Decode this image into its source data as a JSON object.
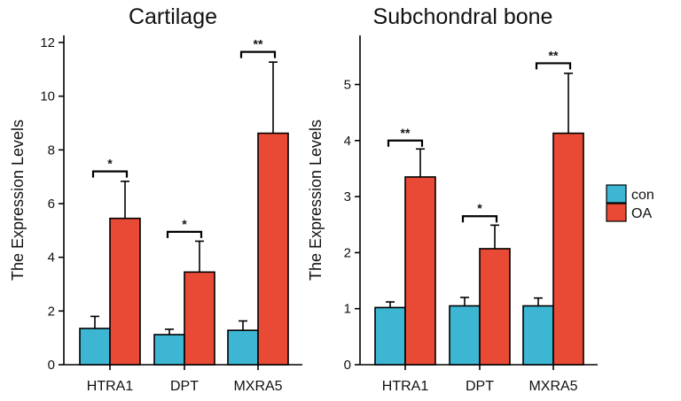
{
  "chart_data": [
    {
      "type": "bar",
      "title": "Cartilage",
      "xlabel": "",
      "ylabel": "The Expression Levels",
      "categories": [
        "HTRA1",
        "DPT",
        "MXRA5"
      ],
      "ylim": [
        0,
        12
      ],
      "yticks": [
        0,
        2,
        4,
        6,
        8,
        10,
        12
      ],
      "series": [
        {
          "name": "con",
          "color": "#3CB6D2",
          "values": [
            1.35,
            1.12,
            1.28
          ],
          "errors": [
            0.45,
            0.2,
            0.35
          ]
        },
        {
          "name": "OA",
          "color": "#E84A35",
          "values": [
            5.45,
            3.45,
            8.62
          ],
          "errors": [
            1.38,
            1.15,
            2.65
          ]
        }
      ],
      "significance": [
        "*",
        "*",
        "**"
      ],
      "bracket_levels": [
        7.2,
        4.95,
        11.65
      ]
    },
    {
      "type": "bar",
      "title": "Subchondral bone",
      "xlabel": "",
      "ylabel": "The Expression Levels",
      "categories": [
        "HTRA1",
        "DPT",
        "MXRA5"
      ],
      "ylim": [
        0,
        5.75
      ],
      "yticks": [
        0,
        1,
        2,
        3,
        4,
        5
      ],
      "series": [
        {
          "name": "con",
          "color": "#3CB6D2",
          "values": [
            1.02,
            1.05,
            1.05
          ],
          "errors": [
            0.1,
            0.15,
            0.14
          ]
        },
        {
          "name": "OA",
          "color": "#E84A35",
          "values": [
            3.35,
            2.07,
            4.13
          ],
          "errors": [
            0.5,
            0.42,
            1.07
          ]
        }
      ],
      "significance": [
        "**",
        "*",
        "**"
      ],
      "bracket_levels": [
        4.0,
        2.65,
        5.38
      ]
    }
  ],
  "legend": [
    {
      "label": "con",
      "color": "#3CB6D2"
    },
    {
      "label": "OA",
      "color": "#E84A35"
    }
  ]
}
